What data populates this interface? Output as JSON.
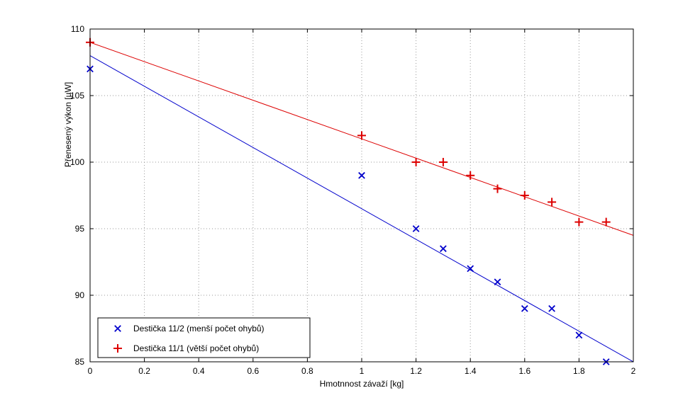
{
  "chart_data": {
    "type": "scatter",
    "title": "",
    "xlabel": "Hmotnnost závaží [kg]",
    "ylabel": "Přenesený výkon [µW]",
    "xlim": [
      0,
      2
    ],
    "ylim": [
      85,
      110
    ],
    "xticks": [
      0,
      0.2,
      0.4,
      0.6,
      0.8,
      1,
      1.2,
      1.4,
      1.6,
      1.8,
      2
    ],
    "xtick_labels": [
      "0",
      "0.2",
      "0.4",
      "0.6",
      "0.8",
      "1",
      "1.2",
      "1.4",
      "1.6",
      "1.8",
      "2"
    ],
    "yticks": [
      85,
      90,
      95,
      100,
      105,
      110
    ],
    "ytick_labels": [
      "85",
      "90",
      "95",
      "100",
      "105",
      "110"
    ],
    "grid": true,
    "grid_style": "dotted",
    "legend_position": "bottom-left",
    "background_color": "#ffffff",
    "axes_color": "#000000",
    "grid_color": "#999999",
    "series": [
      {
        "name": "Destička 11/2 (menší počet ohybů)",
        "marker": "x",
        "color": "#0000cc",
        "points": [
          [
            0,
            107
          ],
          [
            1,
            99
          ],
          [
            1.2,
            95
          ],
          [
            1.3,
            93.5
          ],
          [
            1.4,
            92
          ],
          [
            1.5,
            91
          ],
          [
            1.6,
            89
          ],
          [
            1.7,
            89
          ],
          [
            1.8,
            87
          ],
          [
            1.9,
            85
          ]
        ],
        "fit_line": {
          "x": [
            0,
            2
          ],
          "y": [
            108,
            85
          ]
        }
      },
      {
        "name": "Destička 11/1 (větší počet ohybů)",
        "marker": "+",
        "color": "#dd0000",
        "points": [
          [
            0,
            109
          ],
          [
            1,
            102
          ],
          [
            1.2,
            100
          ],
          [
            1.3,
            100
          ],
          [
            1.4,
            99
          ],
          [
            1.5,
            98
          ],
          [
            1.6,
            97.5
          ],
          [
            1.7,
            97
          ],
          [
            1.8,
            95.5
          ],
          [
            1.9,
            95.5
          ]
        ],
        "fit_line": {
          "x": [
            0,
            2
          ],
          "y": [
            109,
            94.5
          ]
        }
      }
    ]
  }
}
